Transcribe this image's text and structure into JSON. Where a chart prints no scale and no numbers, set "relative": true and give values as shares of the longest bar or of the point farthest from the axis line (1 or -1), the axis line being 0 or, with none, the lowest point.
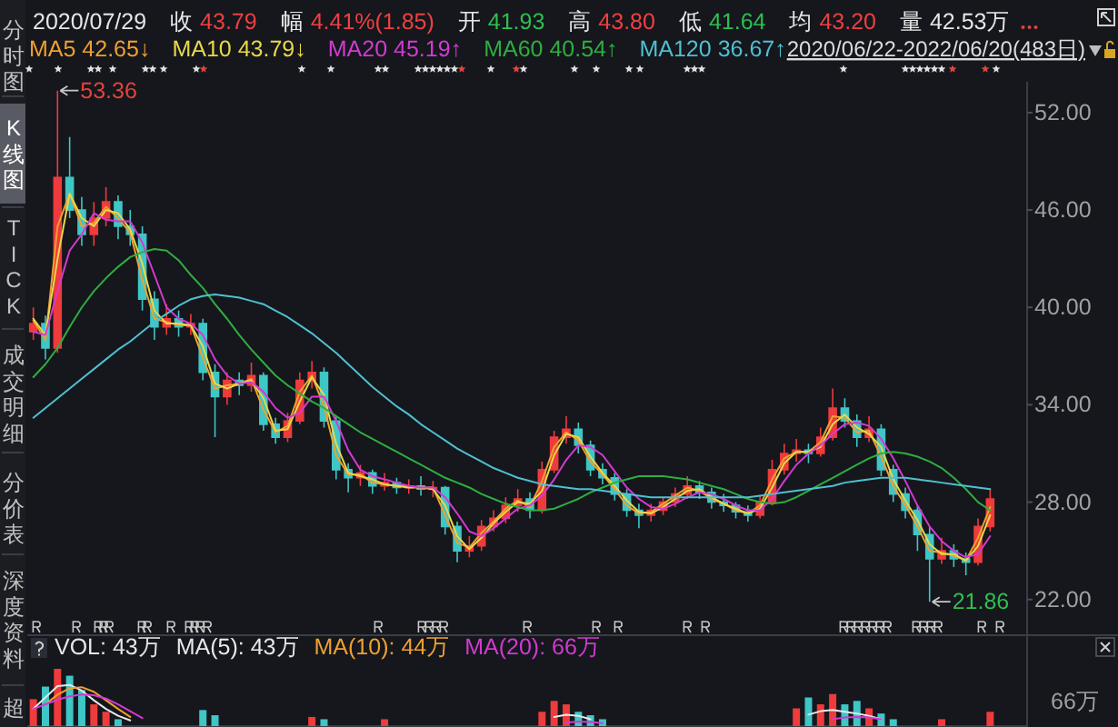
{
  "chart_data": [
    {
      "type": "candlestick",
      "subtitle": "2020/06/22-2022/06/20(483日)",
      "annotations": [
        "2020/07/29",
        "收 43.79",
        "幅 4.41%(1.85)",
        "开 41.93",
        "高 43.80",
        "低 41.64",
        "均 43.20",
        "量 42.53万",
        "53.36",
        "21.86"
      ],
      "categories": [
        null,
        null,
        null,
        null,
        null,
        null,
        null,
        null,
        null,
        null,
        null,
        null,
        null,
        null,
        null,
        null,
        null,
        null,
        null,
        null,
        null,
        null,
        null,
        null,
        null,
        null,
        null,
        null,
        null,
        null,
        null,
        null,
        null,
        null,
        null,
        null,
        null,
        null,
        null,
        null,
        null,
        null,
        null,
        null,
        null,
        null,
        null,
        null,
        null,
        null,
        null,
        null,
        null,
        null,
        null,
        null,
        null,
        null,
        null,
        null,
        null,
        null,
        null,
        null,
        null,
        null,
        null,
        null,
        null,
        null,
        null,
        null,
        null,
        null,
        null,
        null,
        null,
        null,
        null,
        null
      ],
      "ohlc": [
        [
          38.5,
          40.0,
          38.0,
          39.0
        ],
        [
          39.0,
          39.5,
          36.8,
          37.5
        ],
        [
          37.5,
          53.36,
          37.2,
          48.0
        ],
        [
          48.0,
          50.5,
          45.5,
          46.0
        ],
        [
          46.0,
          46.8,
          43.8,
          44.5
        ],
        [
          44.5,
          46.5,
          43.8,
          45.5
        ],
        [
          45.5,
          47.4,
          45.0,
          46.5
        ],
        [
          46.5,
          46.9,
          44.2,
          45.0
        ],
        [
          45.0,
          46.0,
          43.8,
          44.5
        ],
        [
          44.5,
          45.0,
          39.8,
          40.5
        ],
        [
          40.5,
          41.0,
          38.0,
          38.8
        ],
        [
          38.8,
          40.2,
          38.3,
          39.3
        ],
        [
          39.3,
          39.8,
          38.2,
          38.8
        ],
        [
          38.8,
          39.6,
          38.3,
          39.0
        ],
        [
          39.0,
          39.3,
          35.5,
          36.0
        ],
        [
          36.0,
          36.5,
          32.0,
          34.5
        ],
        [
          34.5,
          36.0,
          34.0,
          35.5
        ],
        [
          35.5,
          36.0,
          34.6,
          35.2
        ],
        [
          35.2,
          36.6,
          34.8,
          35.8
        ],
        [
          35.8,
          36.0,
          32.4,
          32.8
        ],
        [
          32.8,
          33.2,
          31.6,
          32.0
        ],
        [
          32.0,
          33.5,
          31.7,
          33.0
        ],
        [
          33.0,
          36.0,
          32.8,
          35.5
        ],
        [
          35.5,
          36.7,
          35.0,
          36.0
        ],
        [
          36.0,
          36.3,
          32.6,
          33.0
        ],
        [
          33.0,
          33.3,
          29.4,
          30.0
        ],
        [
          30.0,
          30.4,
          28.6,
          29.5
        ],
        [
          29.5,
          30.3,
          29.0,
          29.8
        ],
        [
          29.8,
          30.0,
          28.5,
          29.0
        ],
        [
          29.0,
          29.8,
          28.7,
          29.2
        ],
        [
          29.2,
          29.5,
          28.5,
          28.9
        ],
        [
          28.9,
          29.4,
          28.5,
          29.0
        ],
        [
          29.0,
          29.6,
          28.4,
          28.8
        ],
        [
          28.8,
          29.3,
          28.3,
          28.9
        ],
        [
          28.9,
          29.0,
          26.0,
          26.5
        ],
        [
          26.5,
          26.8,
          24.3,
          25.0
        ],
        [
          25.0,
          25.9,
          24.6,
          25.3
        ],
        [
          25.3,
          26.9,
          25.0,
          26.5
        ],
        [
          26.5,
          27.5,
          26.2,
          27.0
        ],
        [
          27.0,
          28.3,
          26.7,
          27.8
        ],
        [
          27.8,
          28.8,
          27.4,
          28.2
        ],
        [
          28.2,
          28.6,
          27.0,
          27.5
        ],
        [
          27.5,
          30.5,
          27.3,
          30.0
        ],
        [
          30.0,
          32.4,
          29.8,
          32.0
        ],
        [
          32.0,
          33.3,
          31.6,
          32.5
        ],
        [
          32.5,
          32.9,
          31.0,
          31.5
        ],
        [
          31.5,
          31.8,
          29.6,
          30.0
        ],
        [
          30.0,
          30.4,
          29.1,
          29.5
        ],
        [
          29.5,
          29.8,
          28.1,
          28.5
        ],
        [
          28.5,
          28.8,
          27.1,
          27.5
        ],
        [
          27.5,
          27.9,
          26.4,
          27.2
        ],
        [
          27.2,
          27.9,
          26.8,
          27.5
        ],
        [
          27.5,
          28.3,
          27.2,
          28.0
        ],
        [
          28.0,
          28.9,
          27.7,
          28.5
        ],
        [
          28.5,
          29.6,
          28.2,
          29.0
        ],
        [
          29.0,
          29.3,
          28.2,
          28.6
        ],
        [
          28.6,
          28.9,
          27.6,
          28.0
        ],
        [
          28.0,
          28.5,
          27.4,
          27.8
        ],
        [
          27.8,
          28.0,
          27.0,
          27.4
        ],
        [
          27.4,
          27.8,
          26.8,
          27.2
        ],
        [
          27.2,
          28.4,
          27.0,
          28.0
        ],
        [
          28.0,
          30.6,
          27.8,
          30.0
        ],
        [
          30.0,
          31.6,
          29.7,
          31.0
        ],
        [
          31.0,
          31.9,
          30.5,
          31.2
        ],
        [
          31.2,
          31.6,
          30.4,
          31.0
        ],
        [
          31.0,
          32.6,
          30.8,
          32.0
        ],
        [
          32.0,
          35.0,
          31.8,
          33.8
        ],
        [
          33.8,
          34.4,
          32.6,
          33.0
        ],
        [
          33.0,
          33.4,
          31.4,
          32.0
        ],
        [
          32.0,
          33.3,
          31.7,
          32.5
        ],
        [
          32.5,
          32.8,
          29.6,
          30.0
        ],
        [
          30.0,
          30.3,
          28.0,
          28.5
        ],
        [
          28.5,
          28.9,
          27.0,
          27.5
        ],
        [
          27.5,
          27.8,
          25.0,
          26.0
        ],
        [
          26.0,
          26.5,
          21.86,
          24.5
        ],
        [
          24.5,
          25.8,
          24.2,
          25.0
        ],
        [
          25.0,
          25.4,
          24.0,
          24.5
        ],
        [
          24.5,
          24.9,
          23.5,
          24.3
        ],
        [
          24.3,
          27.0,
          24.1,
          26.5
        ],
        [
          26.5,
          28.8,
          26.2,
          28.2
        ]
      ],
      "colors": [
        "#ee3b3b",
        "#3fc6c6",
        "#ee3b3b",
        "#3fc6c6",
        "#3fc6c6",
        "#ee3b3b",
        "#ee3b3b",
        "#3fc6c6",
        "#3fc6c6",
        "#3fc6c6",
        "#3fc6c6",
        "#ee3b3b",
        "#3fc6c6",
        "#ee3b3b",
        "#3fc6c6",
        "#3fc6c6",
        "#ee3b3b",
        "#3fc6c6",
        "#ee3b3b",
        "#3fc6c6",
        "#3fc6c6",
        "#ee3b3b",
        "#ee3b3b",
        "#ee3b3b",
        "#3fc6c6",
        "#3fc6c6",
        "#3fc6c6",
        "#ee3b3b",
        "#3fc6c6",
        "#ee3b3b",
        "#3fc6c6",
        "#ee3b3b",
        "#3fc6c6",
        "#ee3b3b",
        "#3fc6c6",
        "#3fc6c6",
        "#ee3b3b",
        "#ee3b3b",
        "#ee3b3b",
        "#ee3b3b",
        "#ee3b3b",
        "#3fc6c6",
        "#ee3b3b",
        "#ee3b3b",
        "#ee3b3b",
        "#3fc6c6",
        "#3fc6c6",
        "#3fc6c6",
        "#3fc6c6",
        "#3fc6c6",
        "#3fc6c6",
        "#ee3b3b",
        "#ee3b3b",
        "#ee3b3b",
        "#ee3b3b",
        "#3fc6c6",
        "#3fc6c6",
        "#3fc6c6",
        "#3fc6c6",
        "#3fc6c6",
        "#ee3b3b",
        "#ee3b3b",
        "#ee3b3b",
        "#ee3b3b",
        "#3fc6c6",
        "#ee3b3b",
        "#ee3b3b",
        "#3fc6c6",
        "#3fc6c6",
        "#ee3b3b",
        "#3fc6c6",
        "#3fc6c6",
        "#3fc6c6",
        "#3fc6c6",
        "#3fc6c6",
        "#ee3b3b",
        "#3fc6c6",
        "#3fc6c6",
        "#ee3b3b",
        "#ee3b3b"
      ],
      "series": [
        {
          "name": "MA5 42.65↓",
          "type": "line",
          "color": "#f0a030",
          "values": [
            39.2,
            38.0,
            45.0,
            47.0,
            45.0,
            45.2,
            46.2,
            45.5,
            44.6,
            41.7,
            39.3,
            39.1,
            38.9,
            38.9,
            36.9,
            35.0,
            35.2,
            35.3,
            35.6,
            33.7,
            32.3,
            32.7,
            34.8,
            35.8,
            33.9,
            30.9,
            29.7,
            29.7,
            29.2,
            29.1,
            29.0,
            29.0,
            28.9,
            28.9,
            27.2,
            25.5,
            25.2,
            26.1,
            26.8,
            27.6,
            28.1,
            27.7,
            29.3,
            31.4,
            32.3,
            31.8,
            30.5,
            29.7,
            28.8,
            27.8,
            27.3,
            27.4,
            27.9,
            28.4,
            28.9,
            28.7,
            28.2,
            27.9,
            27.5,
            27.3,
            27.8,
            29.4,
            30.7,
            31.1,
            31.1,
            31.7,
            33.3,
            33.2,
            32.3,
            32.4,
            30.8,
            29.0,
            27.8,
            26.5,
            25.0,
            24.9,
            24.7,
            24.4,
            25.8,
            27.7
          ]
        },
        {
          "name": "MA10 43.79↓",
          "type": "line",
          "color": "#e8d84a",
          "values": [
            39.3,
            38.3,
            43.0,
            47.0,
            45.5,
            45.0,
            46.0,
            45.8,
            44.8,
            42.7,
            39.8,
            39.0,
            39.0,
            38.9,
            37.6,
            35.3,
            35.0,
            35.3,
            35.5,
            34.4,
            32.4,
            32.5,
            34.2,
            35.7,
            34.6,
            31.6,
            29.8,
            29.6,
            29.4,
            29.1,
            29.0,
            28.9,
            28.9,
            28.8,
            27.8,
            25.9,
            25.1,
            25.8,
            26.7,
            27.4,
            28.0,
            27.9,
            28.7,
            30.9,
            32.2,
            32.0,
            30.8,
            29.8,
            29.0,
            28.1,
            27.4,
            27.3,
            27.7,
            28.2,
            28.7,
            28.8,
            28.3,
            27.9,
            27.6,
            27.3,
            27.6,
            28.9,
            30.4,
            31.1,
            31.1,
            31.4,
            32.8,
            33.4,
            32.6,
            32.2,
            31.4,
            29.4,
            28.1,
            26.9,
            25.4,
            24.8,
            24.8,
            24.4,
            25.3,
            27.2
          ]
        },
        {
          "name": "MA20 45.19↑",
          "type": "line",
          "color": "#d23ad2",
          "values": [
            38.5,
            38.3,
            41.0,
            43.5,
            44.5,
            45.8,
            45.4,
            45.3,
            45.3,
            44.0,
            42.0,
            40.0,
            39.3,
            39.0,
            38.3,
            36.8,
            35.8,
            35.3,
            35.4,
            34.8,
            33.8,
            33.2,
            33.5,
            34.5,
            34.5,
            33.0,
            31.2,
            30.0,
            29.6,
            29.4,
            29.2,
            29.0,
            28.9,
            28.9,
            28.3,
            27.3,
            26.2,
            25.9,
            26.4,
            27.0,
            27.6,
            27.8,
            28.4,
            29.4,
            30.6,
            31.5,
            31.4,
            30.9,
            29.9,
            28.9,
            28.2,
            27.7,
            27.6,
            27.9,
            28.3,
            28.6,
            28.5,
            28.2,
            27.8,
            27.5,
            27.5,
            28.2,
            29.3,
            30.3,
            31.0,
            31.5,
            32.2,
            32.8,
            32.9,
            32.7,
            31.9,
            30.7,
            29.3,
            27.8,
            26.5,
            25.6,
            25.0,
            24.6,
            24.8,
            25.9
          ]
        },
        {
          "name": "MA60 40.54↑",
          "type": "line",
          "color": "#2fae3f",
          "values": [
            35.7,
            36.5,
            37.5,
            38.8,
            40.0,
            41.0,
            41.8,
            42.5,
            43.1,
            43.4,
            43.6,
            43.5,
            42.9,
            42.0,
            41.2,
            40.2,
            39.3,
            38.3,
            37.4,
            36.6,
            35.8,
            35.2,
            34.7,
            34.2,
            33.8,
            33.3,
            32.8,
            32.3,
            31.9,
            31.5,
            31.1,
            30.7,
            30.3,
            29.9,
            29.5,
            29.2,
            28.9,
            28.5,
            28.2,
            27.9,
            27.7,
            27.5,
            27.5,
            27.6,
            27.9,
            28.2,
            28.6,
            28.9,
            29.2,
            29.4,
            29.6,
            29.6,
            29.6,
            29.5,
            29.4,
            29.2,
            29.0,
            28.8,
            28.5,
            28.2,
            28.0,
            27.9,
            28.0,
            28.3,
            28.7,
            29.1,
            29.5,
            29.9,
            30.3,
            30.7,
            31.0,
            31.1,
            31.0,
            30.8,
            30.5,
            30.1,
            29.5,
            28.8,
            28.0,
            27.5
          ]
        },
        {
          "name": "MA120 36.67↑",
          "type": "line",
          "color": "#4fc0d0",
          "values": [
            33.2,
            33.8,
            34.4,
            35.0,
            35.6,
            36.2,
            36.8,
            37.4,
            37.9,
            38.5,
            39.1,
            39.6,
            40.1,
            40.5,
            40.7,
            40.8,
            40.7,
            40.6,
            40.4,
            40.2,
            39.8,
            39.4,
            38.9,
            38.4,
            37.8,
            37.2,
            36.5,
            35.8,
            35.1,
            34.5,
            33.9,
            33.4,
            32.8,
            32.3,
            31.8,
            31.3,
            30.9,
            30.5,
            30.1,
            29.8,
            29.5,
            29.3,
            29.1,
            29.0,
            28.9,
            28.8,
            28.8,
            28.7,
            28.6,
            28.5,
            28.4,
            28.3,
            28.3,
            28.3,
            28.3,
            28.3,
            28.3,
            28.3,
            28.3,
            28.3,
            28.4,
            28.5,
            28.6,
            28.7,
            28.8,
            28.9,
            29.0,
            29.2,
            29.3,
            29.4,
            29.5,
            29.5,
            29.5,
            29.4,
            29.3,
            29.2,
            29.1,
            29.0,
            28.9,
            28.8
          ]
        }
      ],
      "ylim": [
        19.8,
        53.9
      ],
      "yticks": [
        {
          "value": 22,
          "label": "22.00"
        },
        {
          "value": 28,
          "label": "28.00"
        },
        {
          "value": 34,
          "label": "34.00"
        },
        {
          "value": 40,
          "label": "40.00"
        },
        {
          "value": 46,
          "label": "46.00"
        },
        {
          "value": 52,
          "label": "52.00"
        }
      ]
    },
    {
      "type": "bar",
      "relative": true,
      "title": "VOL: 43万",
      "annotations": [
        "66万"
      ],
      "categories": [
        null,
        null,
        null,
        null,
        null,
        null,
        null,
        null,
        null,
        null,
        null,
        null,
        null,
        null,
        null,
        null,
        null,
        null,
        null,
        null,
        null,
        null,
        null,
        null,
        null,
        null,
        null,
        null,
        null,
        null,
        null,
        null,
        null,
        null,
        null,
        null,
        null,
        null,
        null,
        null,
        null,
        null,
        null,
        null,
        null,
        null,
        null,
        null,
        null,
        null,
        null,
        null,
        null,
        null,
        null,
        null,
        null,
        null,
        null,
        null,
        null,
        null,
        null,
        null,
        null,
        null,
        null,
        null,
        null,
        null,
        null,
        null,
        null,
        null,
        null,
        null,
        null,
        null,
        null,
        null
      ],
      "series": [
        {
          "type": "bar",
          "colors": [
            "#ee3b3b",
            "#3fc6c6",
            "#ee3b3b",
            "#3fc6c6",
            "#3fc6c6",
            "#ee3b3b",
            "#ee3b3b",
            "#3fc6c6",
            null,
            null,
            null,
            null,
            null,
            null,
            "#3fc6c6",
            "#3fc6c6",
            null,
            null,
            null,
            null,
            null,
            null,
            null,
            "#ee3b3b",
            "#3fc6c6",
            null,
            null,
            null,
            null,
            "#ee3b3b",
            null,
            null,
            null,
            null,
            null,
            null,
            null,
            null,
            null,
            null,
            null,
            null,
            "#ee3b3b",
            "#ee3b3b",
            "#ee3b3b",
            "#3fc6c6",
            "#3fc6c6",
            "#3fc6c6",
            null,
            null,
            null,
            null,
            null,
            null,
            null,
            null,
            null,
            null,
            null,
            null,
            null,
            null,
            null,
            "#ee3b3b",
            "#3fc6c6",
            "#ee3b3b",
            "#ee3b3b",
            "#3fc6c6",
            "#3fc6c6",
            "#ee3b3b",
            "#3fc6c6",
            "#3fc6c6",
            null,
            null,
            null,
            "#ee3b3b",
            null,
            null,
            null,
            "#ee3b3b"
          ],
          "values": [
            0.47,
            0.69,
            1,
            0.88,
            0.63,
            0.38,
            0.25,
            0.12,
            null,
            null,
            null,
            null,
            null,
            null,
            0.28,
            0.19,
            null,
            null,
            null,
            null,
            null,
            null,
            null,
            0.16,
            0.12,
            null,
            null,
            null,
            null,
            0.12,
            null,
            null,
            null,
            null,
            null,
            null,
            null,
            null,
            null,
            null,
            null,
            null,
            0.25,
            0.44,
            0.38,
            0.25,
            0.19,
            0.12,
            null,
            null,
            null,
            null,
            null,
            null,
            null,
            null,
            null,
            null,
            null,
            null,
            null,
            null,
            null,
            0.31,
            0.5,
            0.38,
            0.56,
            0.38,
            0.44,
            0.31,
            0.22,
            0.12,
            null,
            null,
            null,
            0.12,
            null,
            null,
            null,
            0.25
          ]
        },
        {
          "name": "MA(5): 43万",
          "type": "line",
          "color": "#e8e8e8",
          "values": [
            0.3,
            0.5,
            0.7,
            0.72,
            0.62,
            0.45,
            0.3,
            0.18,
            0.1,
            null,
            null,
            null,
            null,
            null,
            null,
            null,
            null,
            null,
            null,
            null,
            null,
            null,
            null,
            null,
            null,
            null,
            null,
            null,
            null,
            null,
            null,
            null,
            null,
            null,
            null,
            null,
            null,
            null,
            null,
            null,
            null,
            null,
            null,
            0.16,
            0.2,
            0.18,
            0.12,
            null,
            null,
            null,
            null,
            null,
            null,
            null,
            null,
            null,
            null,
            null,
            null,
            null,
            null,
            null,
            null,
            null,
            0.2,
            0.26,
            0.28,
            0.25,
            0.22,
            0.18,
            0.12,
            null,
            null,
            null,
            null,
            null,
            null,
            null,
            null,
            null
          ]
        },
        {
          "name": "MA(10): 44万",
          "type": "line",
          "color": "#f0a030",
          "values": [
            null,
            0.38,
            0.55,
            0.66,
            0.68,
            0.6,
            0.45,
            0.3,
            0.16,
            null,
            null,
            null,
            null,
            null,
            null,
            null,
            null,
            null,
            null,
            null,
            null,
            null,
            null,
            null,
            null,
            null,
            null,
            null,
            null,
            null,
            null,
            null,
            null,
            null,
            null,
            null,
            null,
            null,
            null,
            null,
            null,
            null,
            null,
            null,
            null,
            null,
            null,
            null,
            null,
            null,
            null,
            null,
            null,
            null,
            null,
            null,
            null,
            null,
            null,
            null,
            null,
            null,
            null,
            null,
            null,
            null,
            null,
            null,
            null,
            null,
            null,
            null,
            null,
            null,
            null,
            null,
            null,
            null,
            null,
            null
          ]
        },
        {
          "name": "MA(20): 66万",
          "type": "line",
          "color": "#d23ad2",
          "values": [
            0.3,
            0.38,
            0.46,
            0.52,
            0.55,
            0.54,
            0.48,
            0.38,
            0.26,
            0.14,
            null,
            null,
            null,
            null,
            null,
            null,
            null,
            null,
            null,
            null,
            null,
            null,
            null,
            null,
            null,
            null,
            null,
            null,
            null,
            null,
            null,
            null,
            null,
            null,
            null,
            null,
            null,
            null,
            null,
            null,
            null,
            null,
            null,
            null,
            0.06,
            0.08,
            0.07,
            0.05,
            null,
            null,
            null,
            null,
            null,
            null,
            null,
            null,
            null,
            null,
            null,
            null,
            null,
            null,
            null,
            null,
            null,
            null,
            0.12,
            0.15,
            0.16,
            0.15,
            0.12,
            null,
            null,
            null,
            null,
            null,
            null,
            null,
            null,
            null
          ]
        }
      ]
    },
    {
      "type": "other",
      "annotations": [
        "分时图",
        "K线图",
        "TICK",
        "成交明细",
        "分价表",
        "深度资料",
        "超"
      ]
    }
  ]
}
